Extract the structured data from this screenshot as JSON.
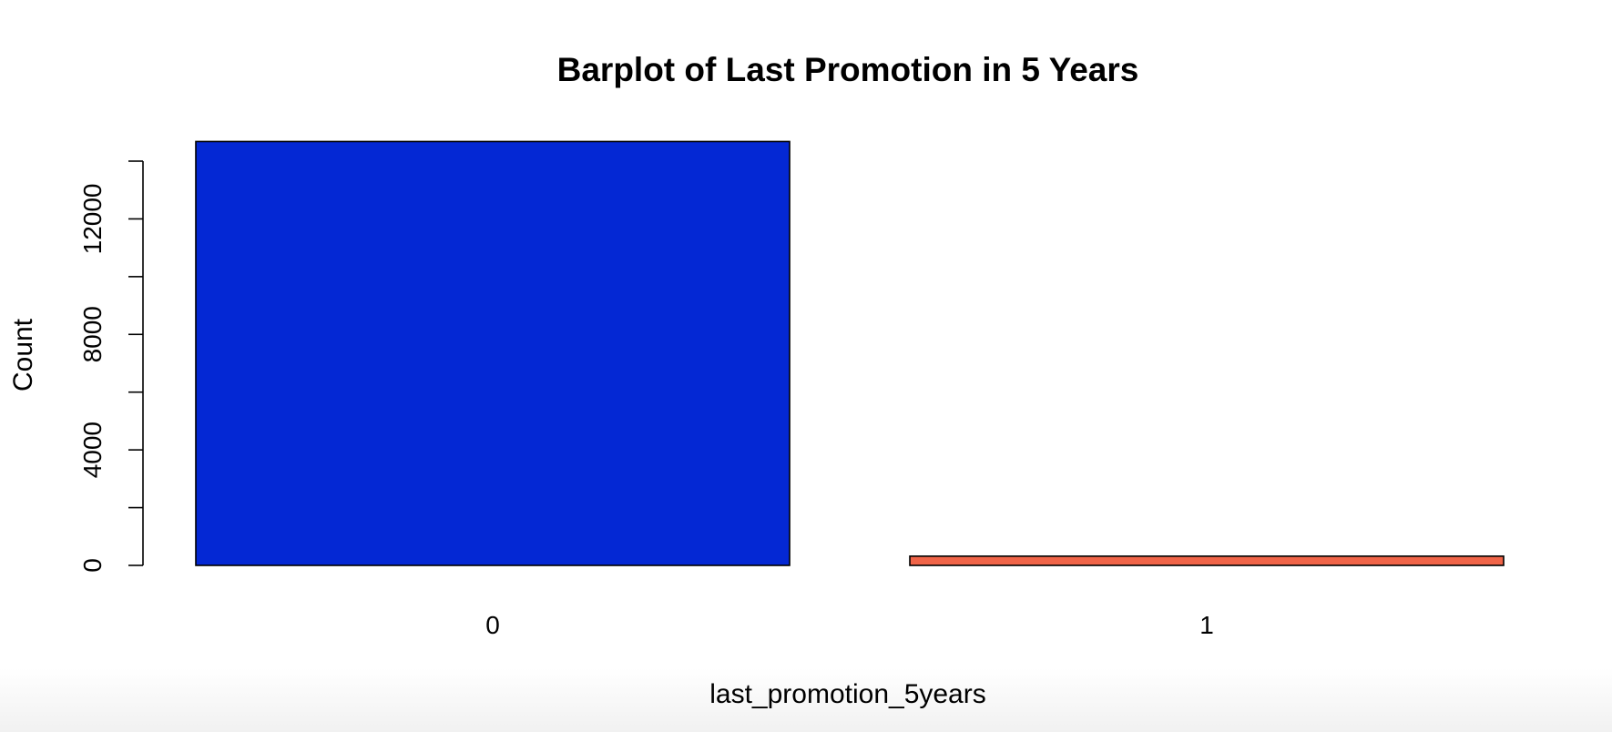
{
  "chart_data": {
    "type": "bar",
    "title": "Barplot of Last Promotion in 5 Years",
    "xlabel": "last_promotion_5years",
    "ylabel": "Count",
    "categories": [
      "0",
      "1"
    ],
    "values": [
      14680,
      319
    ],
    "colors": [
      "#0428d4",
      "#f06448"
    ],
    "ylim": [
      0,
      14000
    ],
    "yticks": [
      0,
      2000,
      4000,
      6000,
      8000,
      10000,
      12000,
      14000
    ],
    "ytick_labels": [
      "0",
      "",
      "4000",
      "",
      "8000",
      "",
      "12000",
      ""
    ],
    "grid": false,
    "legend": "none"
  }
}
